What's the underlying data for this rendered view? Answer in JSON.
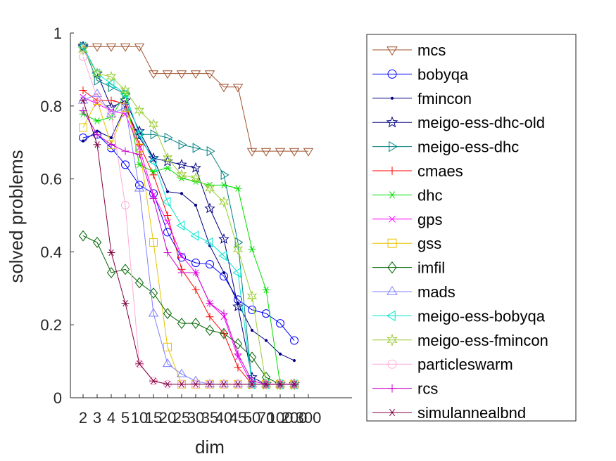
{
  "chart_data": {
    "type": "line",
    "xlabel": "dim",
    "ylabel": "solved problems",
    "ylim": [
      0,
      1
    ],
    "yticks": [
      "0",
      "0.2",
      "0.4",
      "0.6",
      "0.8",
      "1"
    ],
    "categories": [
      "2",
      "3",
      "4",
      "5",
      "10",
      "15",
      "20",
      "25",
      "30",
      "35",
      "40",
      "45",
      "50",
      "70",
      "100",
      "200",
      "300"
    ],
    "grid": false,
    "legend_position": "outside-right",
    "series": [
      {
        "name": "mcs",
        "color": "#a0522d",
        "marker": "triangle-down",
        "values": [
          0.963,
          0.963,
          0.963,
          0.963,
          0.963,
          0.889,
          0.889,
          0.889,
          0.889,
          0.889,
          0.852,
          0.852,
          0.676,
          0.676,
          0.676,
          0.676,
          0.676
        ]
      },
      {
        "name": "bobyqa",
        "color": "#0000ff",
        "marker": "circle",
        "values": [
          0.713,
          0.722,
          0.685,
          0.639,
          0.583,
          0.56,
          0.454,
          0.385,
          0.37,
          0.366,
          0.333,
          0.269,
          0.241,
          0.231,
          0.204,
          0.157,
          null
        ]
      },
      {
        "name": "fmincon",
        "color": "#000080",
        "marker": "dot",
        "values": [
          0.704,
          0.731,
          0.713,
          0.796,
          0.713,
          0.657,
          0.565,
          0.56,
          0.528,
          0.417,
          0.343,
          0.259,
          0.185,
          0.157,
          0.12,
          0.102,
          null
        ]
      },
      {
        "name": "meigo-ess-dhc-old",
        "color": "#000080",
        "marker": "star",
        "values": [
          0.963,
          0.889,
          0.796,
          0.815,
          0.731,
          0.657,
          0.648,
          0.639,
          0.63,
          0.519,
          0.435,
          0.25,
          0.056,
          0.037,
          0.037,
          0.037,
          null
        ]
      },
      {
        "name": "meigo-ess-dhc",
        "color": "#008080",
        "marker": "triangle-right",
        "values": [
          0.963,
          0.87,
          0.852,
          0.833,
          0.722,
          0.722,
          0.713,
          0.694,
          0.685,
          0.676,
          0.611,
          0.426,
          0.037,
          0.037,
          0.037,
          0.037,
          null
        ]
      },
      {
        "name": "cmaes",
        "color": "#ff0000",
        "marker": "plus",
        "values": [
          0.843,
          0.815,
          0.815,
          0.806,
          0.694,
          0.611,
          0.5,
          0.352,
          0.296,
          0.222,
          0.176,
          0.083,
          0.037,
          0.037,
          0.037,
          0.037,
          null
        ]
      },
      {
        "name": "dhc",
        "color": "#00dd00",
        "marker": "asterisk",
        "values": [
          0.778,
          0.759,
          0.769,
          0.833,
          0.639,
          0.62,
          0.63,
          0.602,
          0.593,
          0.583,
          0.583,
          0.574,
          0.407,
          0.296,
          0.037,
          0.037,
          null
        ]
      },
      {
        "name": "gps",
        "color": "#ff00ff",
        "marker": "x",
        "values": [
          0.824,
          0.806,
          0.787,
          0.778,
          0.685,
          0.556,
          0.481,
          0.389,
          0.343,
          0.259,
          0.222,
          0.111,
          0.037,
          0.037,
          0.037,
          0.037,
          null
        ]
      },
      {
        "name": "gss",
        "color": "#e6c300",
        "marker": "square",
        "values": [
          0.741,
          0.815,
          0.694,
          0.796,
          0.685,
          0.426,
          0.139,
          0.037,
          0.037,
          0.037,
          0.037,
          0.037,
          0.037,
          0.037,
          0.037,
          0.037,
          null
        ]
      },
      {
        "name": "imfil",
        "color": "#006400",
        "marker": "diamond",
        "values": [
          0.444,
          0.426,
          0.343,
          0.352,
          0.315,
          0.287,
          0.231,
          0.204,
          0.204,
          0.185,
          0.176,
          0.148,
          0.111,
          0.056,
          0.037,
          0.037,
          null
        ]
      },
      {
        "name": "mads",
        "color": "#8080ff",
        "marker": "triangle-up",
        "values": [
          0.815,
          0.833,
          0.778,
          0.796,
          0.574,
          0.231,
          0.093,
          0.065,
          0.046,
          0.037,
          0.037,
          0.037,
          0.037,
          0.037,
          0.037,
          0.037,
          null
        ]
      },
      {
        "name": "meigo-ess-bobyqa",
        "color": "#00e5cc",
        "marker": "triangle-left",
        "values": [
          0.963,
          0.889,
          0.861,
          0.833,
          0.722,
          0.648,
          0.537,
          0.472,
          0.444,
          0.426,
          0.389,
          0.343,
          0.037,
          0.037,
          0.037,
          0.037,
          null
        ]
      },
      {
        "name": "meigo-ess-fmincon",
        "color": "#99cc33",
        "marker": "hexagram",
        "values": [
          0.954,
          0.889,
          0.88,
          0.843,
          0.787,
          0.75,
          0.657,
          0.611,
          0.602,
          0.574,
          0.537,
          0.407,
          0.278,
          0.037,
          0.037,
          0.037,
          null
        ]
      },
      {
        "name": "particleswarm",
        "color": "#ffaad5",
        "marker": "circle",
        "values": [
          0.935,
          0.824,
          0.778,
          0.528,
          0.093,
          0.046,
          0.037,
          0.037,
          0.037,
          0.037,
          0.037,
          0.037,
          0.037,
          0.037,
          0.037,
          0.037,
          null
        ]
      },
      {
        "name": "rcs",
        "color": "#cc00cc",
        "marker": "plus",
        "values": [
          0.787,
          0.722,
          0.694,
          0.676,
          0.667,
          0.546,
          0.398,
          0.343,
          0.343,
          0.259,
          0.231,
          0.12,
          0.046,
          0.037,
          0.037,
          0.037,
          null
        ]
      },
      {
        "name": "simulannealbnd",
        "color": "#800040",
        "marker": "asterisk",
        "values": [
          0.815,
          0.694,
          0.398,
          0.259,
          0.093,
          0.046,
          0.037,
          0.037,
          0.037,
          0.037,
          0.037,
          0.037,
          0.037,
          0.037,
          0.037,
          0.037,
          null
        ]
      }
    ]
  }
}
